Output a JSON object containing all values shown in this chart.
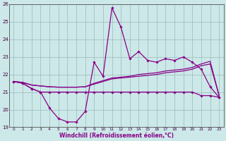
{
  "x": [
    0,
    1,
    2,
    3,
    4,
    5,
    6,
    7,
    8,
    9,
    10,
    11,
    12,
    13,
    14,
    15,
    16,
    17,
    18,
    19,
    20,
    21,
    22,
    23
  ],
  "line_spiky": [
    21.6,
    21.5,
    21.2,
    21.0,
    20.1,
    19.5,
    19.3,
    19.3,
    19.9,
    22.7,
    21.9,
    25.8,
    24.7,
    22.9,
    23.3,
    22.8,
    22.7,
    22.9,
    22.8,
    23.0,
    22.7,
    22.3,
    21.3,
    20.7
  ],
  "line_flat": [
    21.6,
    21.5,
    21.2,
    21.0,
    21.0,
    21.0,
    21.0,
    21.0,
    21.0,
    21.0,
    21.0,
    21.0,
    21.0,
    21.0,
    21.0,
    21.0,
    21.0,
    21.0,
    21.0,
    21.0,
    21.0,
    20.8,
    20.8,
    20.7
  ],
  "line_trend1": [
    21.6,
    21.55,
    21.4,
    21.35,
    21.3,
    21.28,
    21.28,
    21.28,
    21.3,
    21.45,
    21.6,
    21.75,
    21.8,
    21.85,
    21.9,
    21.95,
    22.0,
    22.1,
    22.15,
    22.2,
    22.3,
    22.5,
    22.6,
    20.8
  ],
  "line_trend2": [
    21.6,
    21.55,
    21.4,
    21.35,
    21.3,
    21.28,
    21.28,
    21.28,
    21.3,
    21.5,
    21.65,
    21.8,
    21.85,
    21.9,
    22.0,
    22.05,
    22.1,
    22.2,
    22.25,
    22.3,
    22.4,
    22.6,
    22.75,
    20.8
  ],
  "ylim": [
    19,
    26
  ],
  "yticks": [
    19,
    20,
    21,
    22,
    23,
    24,
    25,
    26
  ],
  "xticks": [
    0,
    1,
    2,
    3,
    4,
    5,
    6,
    7,
    8,
    9,
    10,
    11,
    12,
    13,
    14,
    15,
    16,
    17,
    18,
    19,
    20,
    21,
    22,
    23
  ],
  "xlabel": "Windchill (Refroidissement éolien,°C)",
  "line_color": "#880088",
  "bg_color": "#cce8e8",
  "grid_color": "#9bbaba"
}
